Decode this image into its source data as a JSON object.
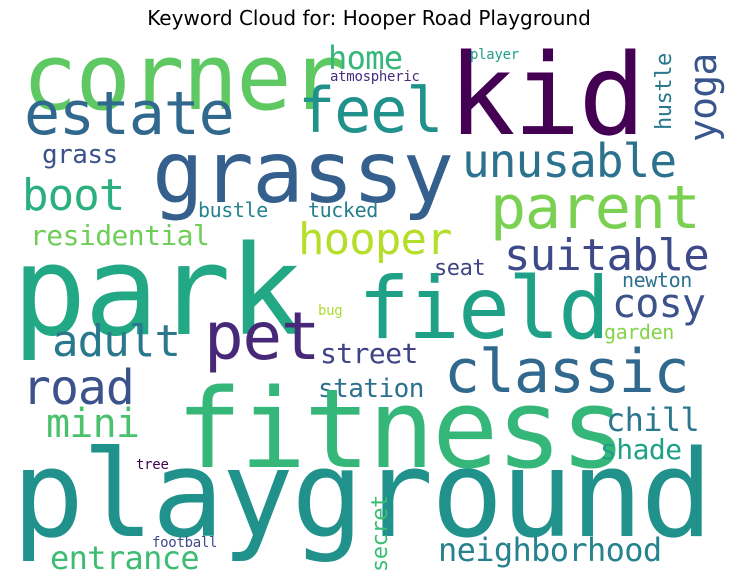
{
  "title": "Keyword Cloud for: Hooper Road Playground",
  "words": [
    {
      "id": "corner",
      "text": "corner",
      "color": "#5ec962",
      "weight": 100
    },
    {
      "id": "kid",
      "text": "kid",
      "color": "#440154",
      "weight": 100
    },
    {
      "id": "estate",
      "text": "estate",
      "color": "#31688e",
      "weight": 70
    },
    {
      "id": "feel",
      "text": "feel",
      "color": "#21918c",
      "weight": 70
    },
    {
      "id": "grassy",
      "text": "grassy",
      "color": "#355f8d",
      "weight": 100
    },
    {
      "id": "home",
      "text": "home",
      "color": "#35b779",
      "weight": 40
    },
    {
      "id": "atmospheric",
      "text": "atmospheric",
      "color": "#472d7b",
      "weight": 15
    },
    {
      "id": "player",
      "text": "player",
      "color": "#1f9e89",
      "weight": 15
    },
    {
      "id": "yoga",
      "text": "yoga",
      "color": "#39568c",
      "weight": 50
    },
    {
      "id": "hustle",
      "text": "hustle",
      "color": "#2a788e",
      "weight": 30
    },
    {
      "id": "unusable",
      "text": "unusable",
      "color": "#2c728e",
      "weight": 55
    },
    {
      "id": "grass",
      "text": "grass",
      "color": "#3b528b",
      "weight": 30
    },
    {
      "id": "boot",
      "text": "boot",
      "color": "#2ab07f",
      "weight": 55
    },
    {
      "id": "parent",
      "text": "parent",
      "color": "#7ad151",
      "weight": 70
    },
    {
      "id": "bustle",
      "text": "bustle",
      "color": "#25848e",
      "weight": 25
    },
    {
      "id": "tucked",
      "text": "tucked",
      "color": "#277f8e",
      "weight": 25
    },
    {
      "id": "residential",
      "text": "residential",
      "color": "#6ece58",
      "weight": 35
    },
    {
      "id": "hooper",
      "text": "hooper",
      "color": "#b5de2b",
      "weight": 50
    },
    {
      "id": "suitable",
      "text": "suitable",
      "color": "#3e4989",
      "weight": 50
    },
    {
      "id": "park",
      "text": "park",
      "color": "#22a884",
      "weight": 100
    },
    {
      "id": "seat",
      "text": "seat",
      "color": "#414487",
      "weight": 25
    },
    {
      "id": "field",
      "text": "field",
      "color": "#1fa188",
      "weight": 90
    },
    {
      "id": "cosy",
      "text": "cosy",
      "color": "#3b528b",
      "weight": 45
    },
    {
      "id": "newton",
      "text": "newton",
      "color": "#2c728e",
      "weight": 20
    },
    {
      "id": "adult",
      "text": "adult",
      "color": "#2a788e",
      "weight": 50
    },
    {
      "id": "pet",
      "text": "pet",
      "color": "#482878",
      "weight": 70
    },
    {
      "id": "garden",
      "text": "garden",
      "color": "#84d44b",
      "weight": 20
    },
    {
      "id": "bug",
      "text": "bug",
      "color": "#addc30",
      "weight": 12
    },
    {
      "id": "street",
      "text": "street",
      "color": "#404387",
      "weight": 30
    },
    {
      "id": "road",
      "text": "road",
      "color": "#3b528b",
      "weight": 55
    },
    {
      "id": "classic",
      "text": "classic",
      "color": "#31688e",
      "weight": 70
    },
    {
      "id": "station",
      "text": "station",
      "color": "#2d708e",
      "weight": 30
    },
    {
      "id": "mini",
      "text": "mini",
      "color": "#4ac16d",
      "weight": 45
    },
    {
      "id": "fitness",
      "text": "fitness",
      "color": "#35b779",
      "weight": 100
    },
    {
      "id": "chill",
      "text": "chill",
      "color": "#2a788e",
      "weight": 30
    },
    {
      "id": "shade",
      "text": "shade",
      "color": "#1fa088",
      "weight": 30
    },
    {
      "id": "tree",
      "text": "tree",
      "color": "#440154",
      "weight": 12
    },
    {
      "id": "playground",
      "text": "playground",
      "color": "#21918c",
      "weight": 100
    },
    {
      "id": "secret",
      "text": "secret",
      "color": "#3dbc74",
      "weight": 25
    },
    {
      "id": "neighborhood",
      "text": "neighborhood",
      "color": "#26828e",
      "weight": 35
    },
    {
      "id": "entrance",
      "text": "entrance",
      "color": "#3fbc73",
      "weight": 35
    },
    {
      "id": "football",
      "text": "football",
      "color": "#3e4a89",
      "weight": 15
    }
  ]
}
